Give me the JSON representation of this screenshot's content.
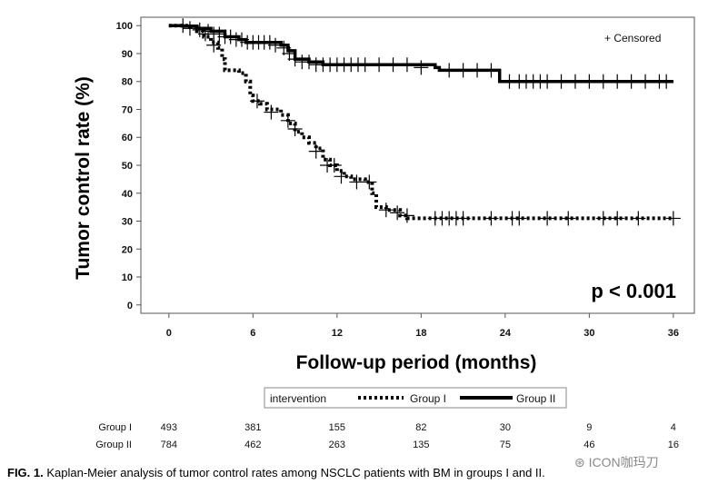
{
  "chart_data": {
    "type": "line",
    "subtype": "kaplan-meier",
    "xlabel": "Follow-up period (months)",
    "ylabel": "Tumor control rate (%)",
    "x_ticks": [
      0,
      6,
      12,
      18,
      24,
      30,
      36
    ],
    "y_ticks": [
      0,
      10,
      20,
      30,
      40,
      50,
      60,
      70,
      80,
      90,
      100
    ],
    "xlim": [
      -2,
      37.5
    ],
    "ylim": [
      -3,
      103
    ],
    "censor_legend": "+ Censored",
    "annotation": "p < 0.001",
    "legend_title": "intervention",
    "series": [
      {
        "name": "Group I",
        "style": "dotted",
        "points": [
          [
            0,
            100
          ],
          [
            1.5,
            99.5
          ],
          [
            2,
            98
          ],
          [
            2.5,
            96
          ],
          [
            3,
            94
          ],
          [
            3.5,
            92
          ],
          [
            3.8,
            88
          ],
          [
            4,
            84
          ],
          [
            5,
            83
          ],
          [
            5.5,
            80
          ],
          [
            5.8,
            75
          ],
          [
            6,
            73
          ],
          [
            6.5,
            72
          ],
          [
            7,
            70
          ],
          [
            8,
            68
          ],
          [
            8.5,
            65
          ],
          [
            9,
            62
          ],
          [
            9.5,
            60
          ],
          [
            10,
            58
          ],
          [
            10.5,
            56
          ],
          [
            11,
            52
          ],
          [
            11.5,
            50
          ],
          [
            12,
            48
          ],
          [
            12.5,
            46
          ],
          [
            13,
            45
          ],
          [
            14,
            44
          ],
          [
            14.5,
            40
          ],
          [
            14.8,
            35
          ],
          [
            15.5,
            34
          ],
          [
            16.5,
            32
          ],
          [
            17,
            31
          ],
          [
            36,
            31
          ]
        ],
        "censored": [
          [
            2.6,
            97
          ],
          [
            3.2,
            93
          ],
          [
            6.3,
            73
          ],
          [
            7.3,
            69
          ],
          [
            8.5,
            66
          ],
          [
            9,
            63
          ],
          [
            10.5,
            55
          ],
          [
            11.3,
            50
          ],
          [
            11.8,
            50
          ],
          [
            12.3,
            46
          ],
          [
            13.4,
            44
          ],
          [
            14.3,
            44
          ],
          [
            15.5,
            34
          ],
          [
            16.3,
            33
          ],
          [
            17,
            32
          ],
          [
            19,
            31
          ],
          [
            19.5,
            31
          ],
          [
            20,
            31
          ],
          [
            20.5,
            31
          ],
          [
            21,
            31
          ],
          [
            23,
            31
          ],
          [
            24.5,
            31
          ],
          [
            25,
            31
          ],
          [
            27,
            31
          ],
          [
            28.5,
            31
          ],
          [
            31,
            31
          ],
          [
            32,
            31
          ],
          [
            33.5,
            31
          ],
          [
            36,
            31
          ]
        ]
      },
      {
        "name": "Group II",
        "style": "solid",
        "points": [
          [
            0,
            100
          ],
          [
            1,
            99.8
          ],
          [
            2,
            99
          ],
          [
            3,
            98
          ],
          [
            4,
            96
          ],
          [
            5,
            95
          ],
          [
            5.5,
            94
          ],
          [
            8,
            93
          ],
          [
            8.5,
            91
          ],
          [
            9,
            88
          ],
          [
            10,
            87
          ],
          [
            11,
            86
          ],
          [
            19,
            85
          ],
          [
            19.3,
            84
          ],
          [
            23.5,
            84
          ],
          [
            23.6,
            80
          ],
          [
            36,
            80
          ]
        ],
        "censored": [
          [
            1,
            100
          ],
          [
            1.5,
            99
          ],
          [
            2.2,
            98.5
          ],
          [
            2.8,
            98
          ],
          [
            3.2,
            97
          ],
          [
            3.6,
            97
          ],
          [
            4,
            96
          ],
          [
            4.4,
            96
          ],
          [
            4.8,
            95
          ],
          [
            5.2,
            95
          ],
          [
            5.6,
            94
          ],
          [
            6,
            94
          ],
          [
            6.4,
            94
          ],
          [
            6.8,
            94
          ],
          [
            7.2,
            94
          ],
          [
            7.6,
            93
          ],
          [
            8.2,
            92
          ],
          [
            8.6,
            90
          ],
          [
            9,
            88
          ],
          [
            9.5,
            87
          ],
          [
            10,
            87
          ],
          [
            10.5,
            86
          ],
          [
            11,
            86
          ],
          [
            11.5,
            86
          ],
          [
            12,
            86
          ],
          [
            12.5,
            86
          ],
          [
            13,
            86
          ],
          [
            13.5,
            86
          ],
          [
            14,
            86
          ],
          [
            15,
            86
          ],
          [
            16,
            86
          ],
          [
            17,
            86
          ],
          [
            18,
            85
          ],
          [
            20,
            84
          ],
          [
            21,
            84
          ],
          [
            22,
            84
          ],
          [
            23,
            84
          ],
          [
            24.3,
            80
          ],
          [
            25,
            80
          ],
          [
            25.5,
            80
          ],
          [
            26,
            80
          ],
          [
            26.5,
            80
          ],
          [
            27,
            80
          ],
          [
            28,
            80
          ],
          [
            29,
            80
          ],
          [
            30,
            80
          ],
          [
            31,
            80
          ],
          [
            32,
            80
          ],
          [
            33,
            80
          ],
          [
            34,
            80
          ],
          [
            35,
            80
          ],
          [
            35.5,
            80
          ]
        ]
      }
    ],
    "risk_table": {
      "rows": [
        {
          "label": "Group I",
          "values": [
            "493",
            "381",
            "155",
            "82",
            "30",
            "9",
            "4"
          ]
        },
        {
          "label": "Group II",
          "values": [
            "784",
            "462",
            "263",
            "135",
            "75",
            "46",
            "16"
          ]
        }
      ]
    }
  },
  "caption": {
    "prefix": "FIG. 1.",
    "text": " Kaplan-Meier analysis of tumor control rates among NSCLC patients with BM in groups I and II."
  },
  "watermark": "ICON咖玛刀"
}
